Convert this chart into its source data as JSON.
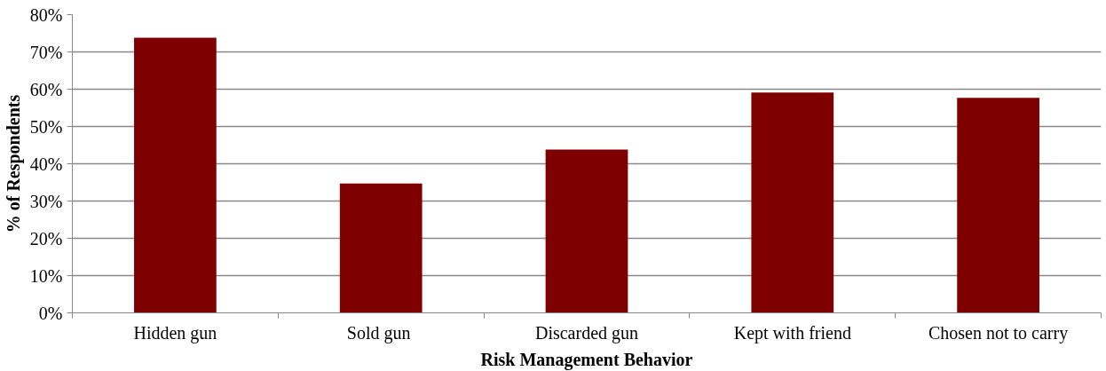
{
  "chart_data": {
    "type": "bar",
    "xlabel": "Risk Management Behavior",
    "ylabel": "% of Respondents",
    "categories": [
      "Hidden gun",
      "Sold  gun",
      "Discarded gun",
      "Kept with friend",
      "Chosen not to carry"
    ],
    "values": [
      73.8,
      34.7,
      43.8,
      59.1,
      57.7
    ],
    "color": "#7f0000",
    "ylim": [
      0,
      80
    ],
    "yticks": [
      {
        "value": 0,
        "label": "0%"
      },
      {
        "value": 10,
        "label": "10%"
      },
      {
        "value": 20,
        "label": "20%"
      },
      {
        "value": 30,
        "label": "30%"
      },
      {
        "value": 40,
        "label": "40%"
      },
      {
        "value": 50,
        "label": "50%"
      },
      {
        "value": 60,
        "label": "60%"
      },
      {
        "value": 70,
        "label": "70%"
      },
      {
        "value": 80,
        "label": "80%"
      }
    ],
    "grid": "y"
  }
}
